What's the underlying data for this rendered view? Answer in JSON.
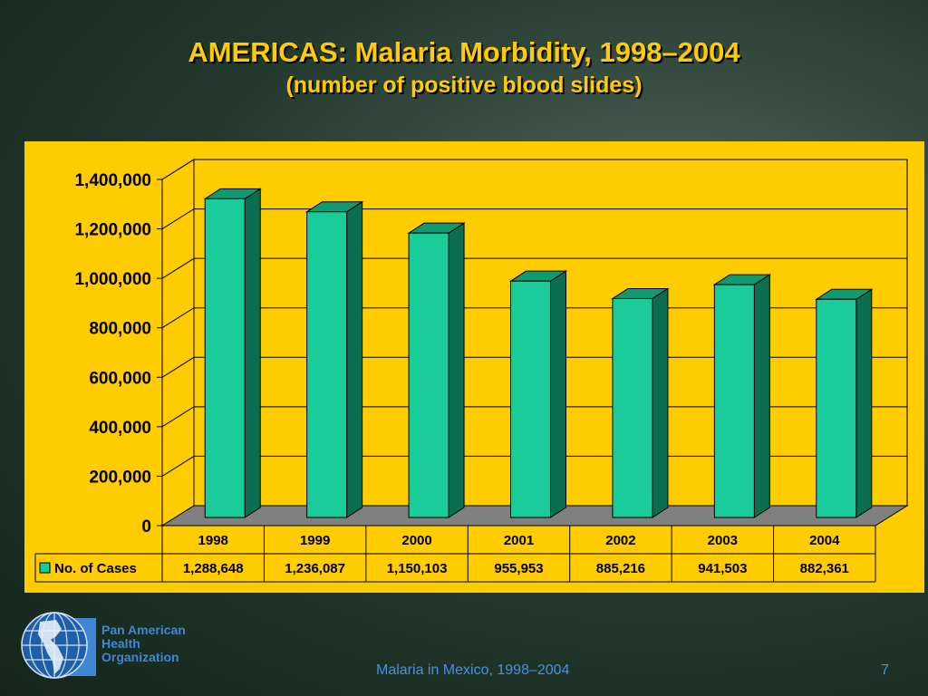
{
  "slide": {
    "title": "AMERICAS: Malaria Morbidity, 1998–2004",
    "subtitle": "(number of  positive blood slides)",
    "footer": "Malaria in Mexico, 1998–2004",
    "page_number": "7",
    "organization": [
      "Pan American",
      "Health",
      "Organization"
    ]
  },
  "colors": {
    "panel": "#ffcc00",
    "bar_front": "#1acc99",
    "bar_side": "#0c6e50",
    "bar_top": "#119a72",
    "floor": "#808080",
    "title": "#ffcc00",
    "footer": "#4b8fe0"
  },
  "chart_data": {
    "type": "bar",
    "style": "3d-column",
    "categories": [
      "1998",
      "1999",
      "2000",
      "2001",
      "2002",
      "2003",
      "2004"
    ],
    "series": [
      {
        "name": "No. of Cases",
        "values": [
          1288648,
          1236087,
          1150103,
          955953,
          885216,
          941503,
          882361
        ],
        "value_labels": [
          "1,288,648",
          "1,236,087",
          "1,150,103",
          "955,953",
          "885,216",
          "941,503",
          "882,361"
        ]
      }
    ],
    "ylim": [
      0,
      1400000
    ],
    "yticks": [
      0,
      200000,
      400000,
      600000,
      800000,
      1000000,
      1200000,
      1400000
    ],
    "ytick_labels": [
      "0",
      "200,000",
      "400,000",
      "600,000",
      "800,000",
      "1,000,000",
      "1,200,000",
      "1,400,000"
    ],
    "grid": true,
    "legend": "data-table",
    "data_table": true
  }
}
